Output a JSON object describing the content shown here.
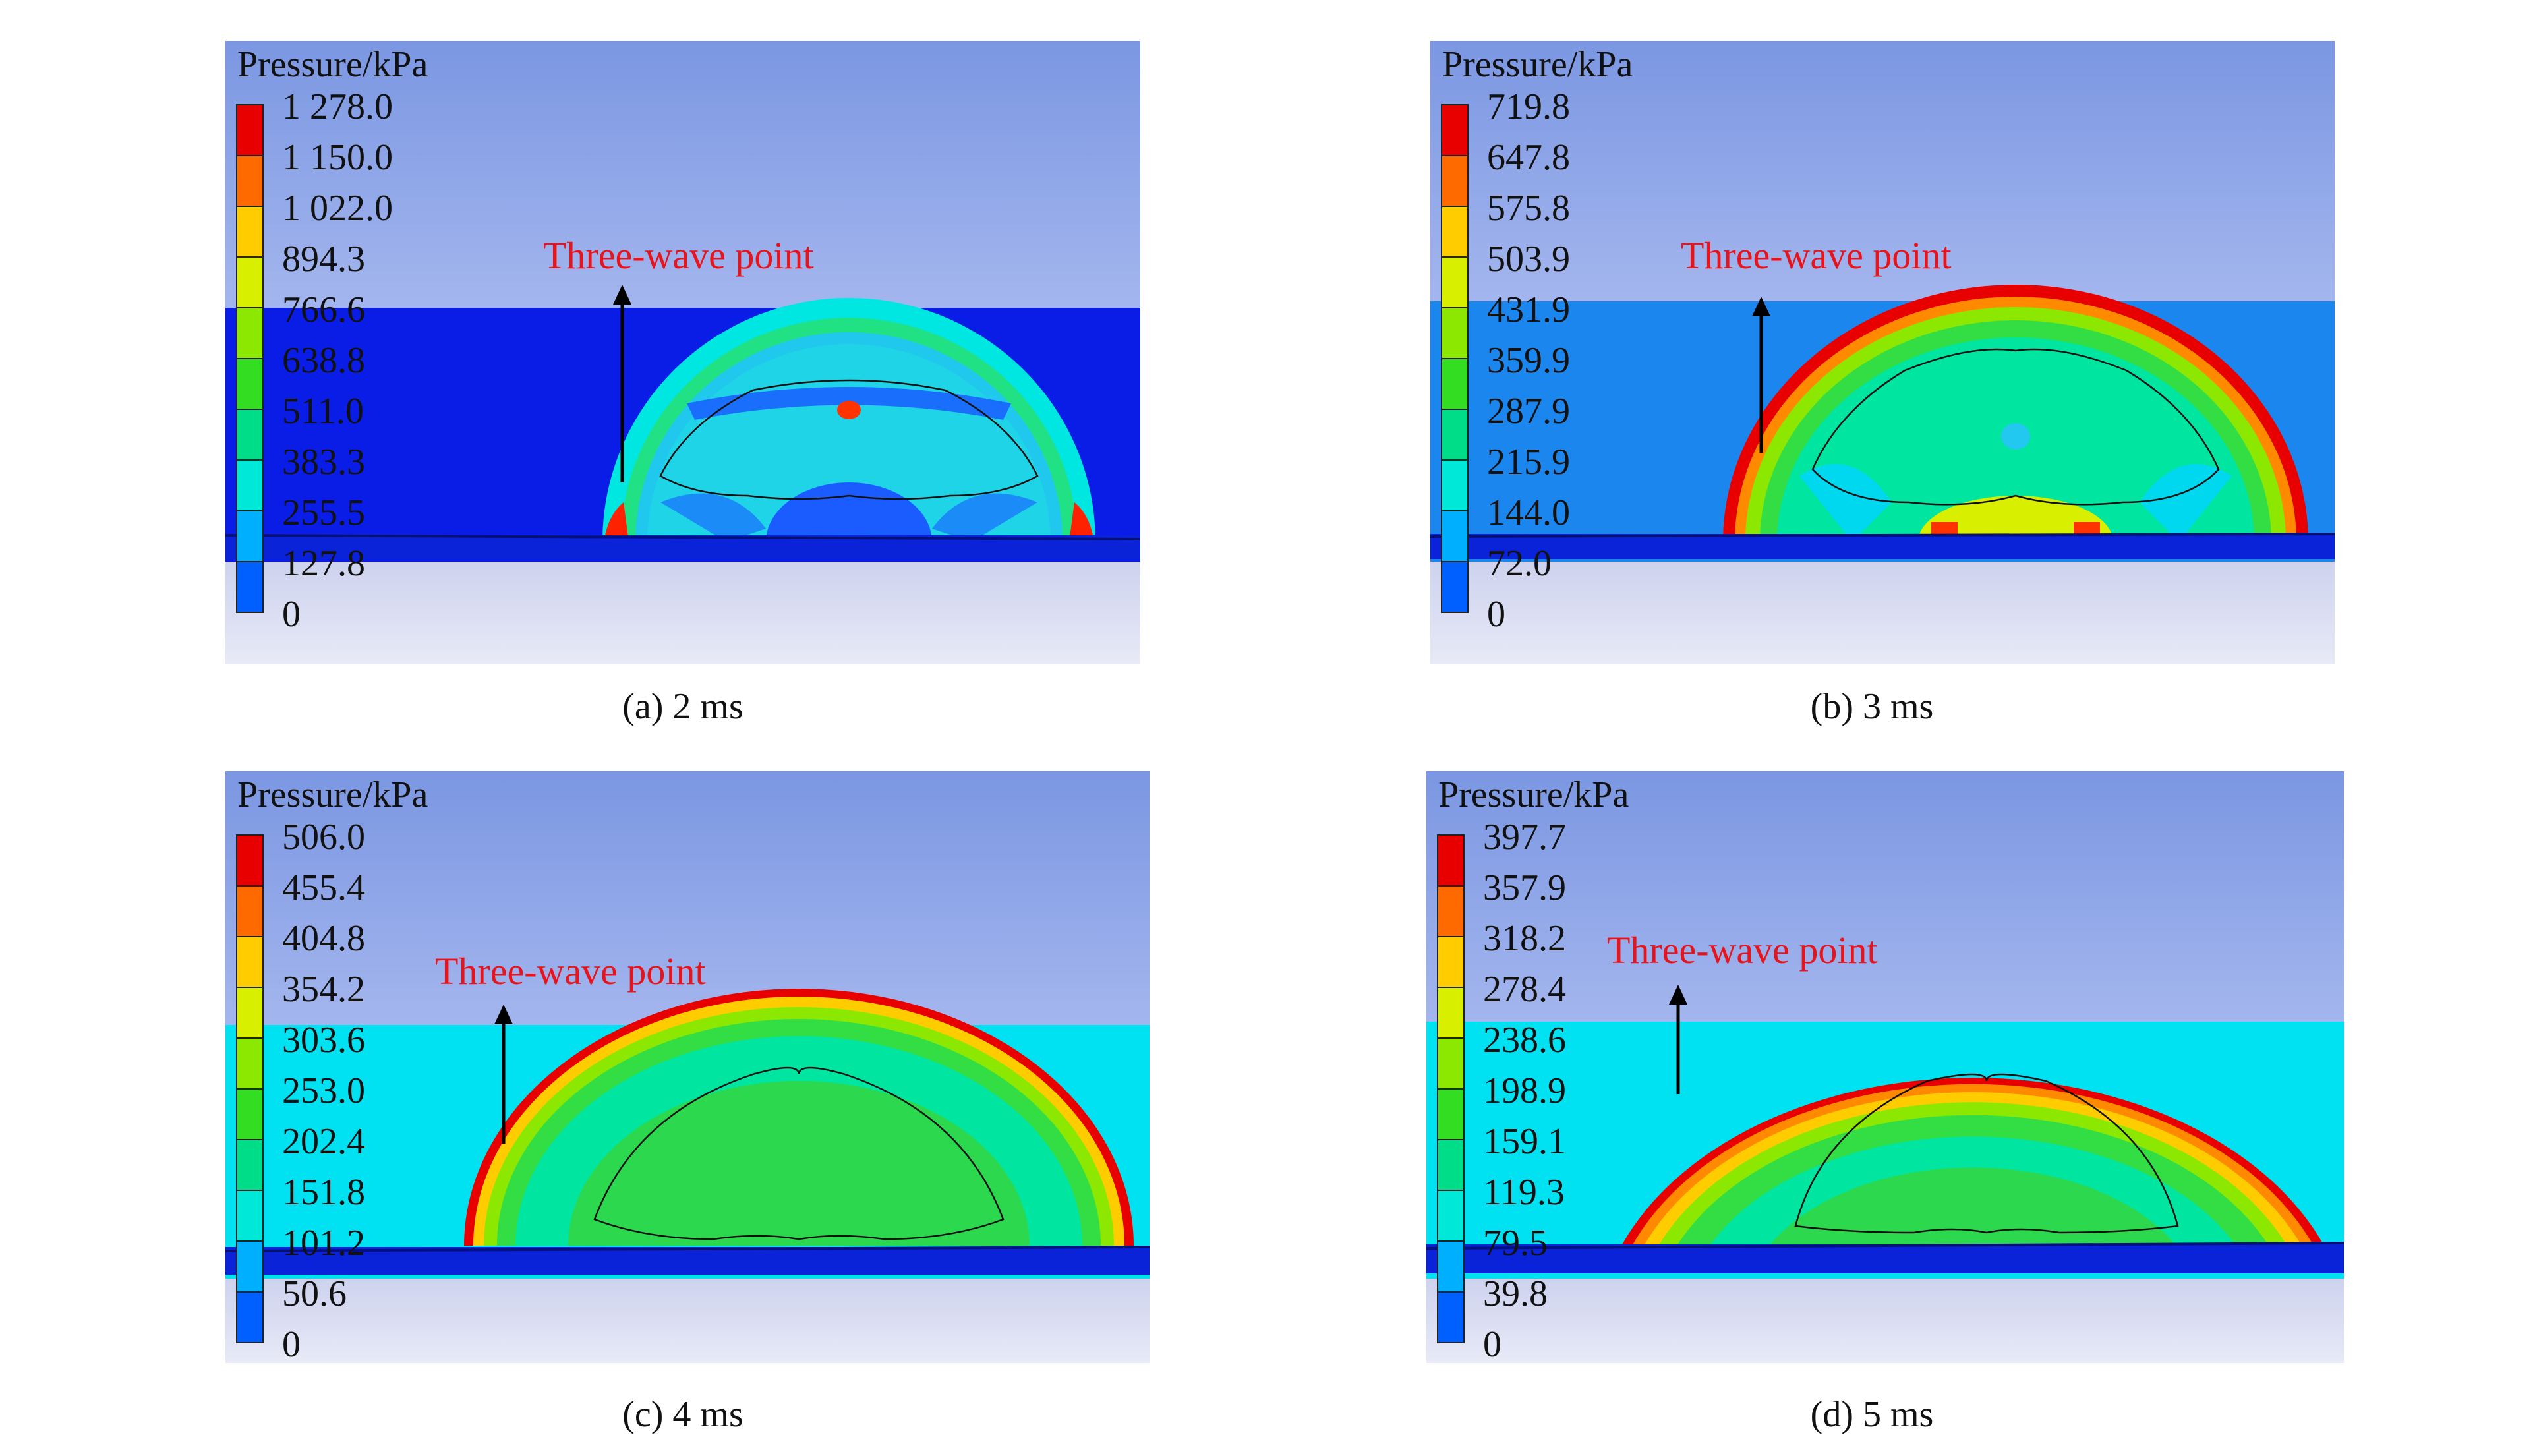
{
  "panels": [
    {
      "legend_title": "Pressure/kPa",
      "legend_values": [
        "1 278.0",
        "1 150.0",
        "1 022.0",
        "894.3",
        "766.6",
        "638.8",
        "511.0",
        "383.3",
        "255.5",
        "127.8",
        "0"
      ],
      "annotation": "Three-wave point",
      "caption": "(a) 2 ms"
    },
    {
      "legend_title": "Pressure/kPa",
      "legend_values": [
        "719.8",
        "647.8",
        "575.8",
        "503.9",
        "431.9",
        "359.9",
        "287.9",
        "215.9",
        "144.0",
        "72.0",
        "0"
      ],
      "annotation": "Three-wave point",
      "caption": "(b) 3 ms"
    },
    {
      "legend_title": "Pressure/kPa",
      "legend_values": [
        "506.0",
        "455.4",
        "404.8",
        "354.2",
        "303.6",
        "253.0",
        "202.4",
        "151.8",
        "101.2",
        "50.6",
        "0"
      ],
      "annotation": "Three-wave point",
      "caption": "(c) 4 ms"
    },
    {
      "legend_title": "Pressure/kPa",
      "legend_values": [
        "397.7",
        "357.9",
        "318.2",
        "278.4",
        "238.6",
        "198.9",
        "159.1",
        "119.3",
        "79.5",
        "39.8",
        "0"
      ],
      "annotation": "Three-wave point",
      "caption": "(d) 5 ms"
    }
  ],
  "colors": {
    "colormap": [
      "#e80000",
      "#ff6a00",
      "#ffcc00",
      "#d8f000",
      "#8ce800",
      "#33dd22",
      "#00dd88",
      "#00e8d8",
      "#00b0ff",
      "#0060ff",
      "#0000ee"
    ],
    "annotation": "#e8141b"
  }
}
